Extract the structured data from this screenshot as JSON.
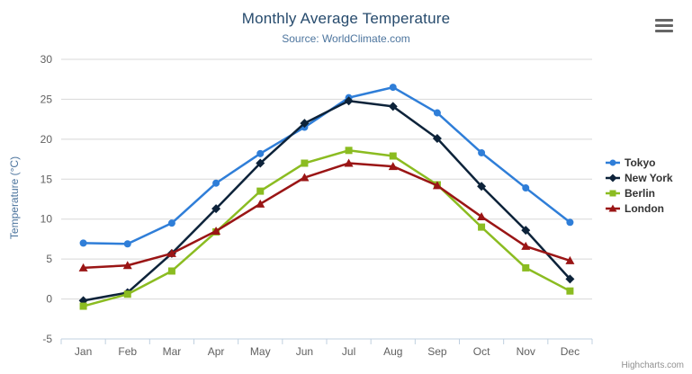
{
  "chart": {
    "title": "Monthly Average Temperature",
    "subtitle": "Source: WorldClimate.com",
    "credits_label": "Highcharts.com",
    "export_menu_icon": "hamburger-icon",
    "colors": {
      "title_text": "#274b6d",
      "subtitle_text": "#4d759e",
      "axis_label_text": "#606060",
      "gridline": "#d8d8d8",
      "axis_line": "#c0d0e0",
      "legend_text": "#333333",
      "background": "#ffffff"
    }
  },
  "chart_data": {
    "type": "line",
    "title": "Monthly Average Temperature",
    "subtitle": "Source: WorldClimate.com",
    "xlabel": "",
    "ylabel": "Temperature (°C)",
    "categories": [
      "Jan",
      "Feb",
      "Mar",
      "Apr",
      "May",
      "Jun",
      "Jul",
      "Aug",
      "Sep",
      "Oct",
      "Nov",
      "Dec"
    ],
    "series": [
      {
        "name": "Tokyo",
        "color": "#2f7ed8",
        "symbol": "circle",
        "values": [
          7.0,
          6.9,
          9.5,
          14.5,
          18.2,
          21.5,
          25.2,
          26.5,
          23.3,
          18.3,
          13.9,
          9.6
        ]
      },
      {
        "name": "New York",
        "color": "#0d233a",
        "symbol": "diamond",
        "values": [
          -0.2,
          0.8,
          5.7,
          11.3,
          17.0,
          22.0,
          24.8,
          24.1,
          20.1,
          14.1,
          8.6,
          2.5
        ]
      },
      {
        "name": "Berlin",
        "color": "#8bbc21",
        "symbol": "square",
        "values": [
          -0.9,
          0.6,
          3.5,
          8.4,
          13.5,
          17.0,
          18.6,
          17.9,
          14.3,
          9.0,
          3.9,
          1.0
        ]
      },
      {
        "name": "London",
        "color": "#9a1515",
        "symbol": "triangle",
        "values": [
          3.9,
          4.2,
          5.7,
          8.5,
          11.9,
          15.2,
          17.0,
          16.6,
          14.2,
          10.3,
          6.6,
          4.8
        ]
      }
    ],
    "ylim": [
      -5,
      30
    ],
    "yticks": [
      -5,
      0,
      5,
      10,
      15,
      20,
      25,
      30
    ],
    "grid": true,
    "legend_position": "right"
  }
}
